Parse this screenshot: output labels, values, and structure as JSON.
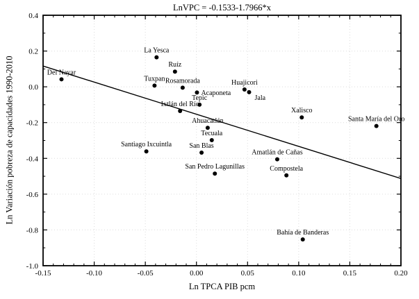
{
  "chart_data": {
    "type": "scatter",
    "title": "LnVPC = -0.1533-1.7966*x",
    "xlabel": "Ln TPCA PIB pcm",
    "ylabel": "Ln Variación pobreza de capacidades 1990-2010",
    "xlim": [
      -0.15,
      0.2
    ],
    "ylim": [
      -1.0,
      0.4
    ],
    "x_tick_labels": [
      "-0.15",
      "-0.10",
      "-0.05",
      "0.00",
      "0.05",
      "0.10",
      "0.15",
      "0.20"
    ],
    "y_tick_labels": [
      "0.4",
      "0.2",
      "0.0",
      "-0.2",
      "-0.4",
      "-0.6",
      "-0.8",
      "-1.0"
    ],
    "x_major_step": 0.05,
    "x_minor_step": 0.01,
    "y_major_step": 0.2,
    "y_minor_step": 0.1,
    "grid": true,
    "legend": "none",
    "regression": {
      "equation": "LnVPC = -0.1533-1.7966*x",
      "intercept": -0.1533,
      "slope": -1.7966
    },
    "points": [
      {
        "label": "Del Nayar",
        "x": -0.132,
        "y": 0.042,
        "label_pos": "above"
      },
      {
        "label": "La Yesca",
        "x": -0.039,
        "y": 0.165,
        "label_pos": "above"
      },
      {
        "label": "Ruíz",
        "x": -0.021,
        "y": 0.085,
        "label_pos": "above"
      },
      {
        "label": "Tuxpan",
        "x": -0.041,
        "y": 0.007,
        "label_pos": "above"
      },
      {
        "label": "Rosamorada",
        "x": -0.0135,
        "y": -0.005,
        "label_pos": "above"
      },
      {
        "label": "Acaponeta",
        "x": 0.0005,
        "y": -0.032,
        "label_pos": "right"
      },
      {
        "label": "Huajicori",
        "x": 0.047,
        "y": -0.015,
        "label_pos": "above"
      },
      {
        "label": "Jala",
        "x": 0.0515,
        "y": -0.03,
        "label_pos": "below-right"
      },
      {
        "label": "Tepic",
        "x": 0.003,
        "y": -0.1,
        "label_pos": "above"
      },
      {
        "label": "Ixtlán del Río",
        "x": -0.016,
        "y": -0.135,
        "label_pos": "above"
      },
      {
        "label": "Xalisco",
        "x": 0.103,
        "y": -0.171,
        "label_pos": "above"
      },
      {
        "label": "Santa María del Oro",
        "x": 0.176,
        "y": -0.219,
        "label_pos": "above"
      },
      {
        "label": "Ahuacatlán",
        "x": 0.011,
        "y": -0.229,
        "label_pos": "above"
      },
      {
        "label": "Tecuala",
        "x": 0.015,
        "y": -0.298,
        "label_pos": "above"
      },
      {
        "label": "San Blas",
        "x": 0.005,
        "y": -0.368,
        "label_pos": "above"
      },
      {
        "label": "Santiago Ixcuintla",
        "x": -0.049,
        "y": -0.361,
        "label_pos": "above"
      },
      {
        "label": "Amatlán de Cañas",
        "x": 0.079,
        "y": -0.405,
        "label_pos": "above"
      },
      {
        "label": "San Pedro Lagunillas",
        "x": 0.018,
        "y": -0.485,
        "label_pos": "above"
      },
      {
        "label": "Compostela",
        "x": 0.088,
        "y": -0.495,
        "label_pos": "above"
      },
      {
        "label": "Bahía de Banderas",
        "x": 0.104,
        "y": -0.853,
        "label_pos": "above"
      }
    ],
    "colors": {
      "background": "#ffffff",
      "frame": "#000000",
      "point": "#000000",
      "regression_line": "#000000",
      "grid": "#dcdcdc",
      "text": "#000000"
    }
  }
}
